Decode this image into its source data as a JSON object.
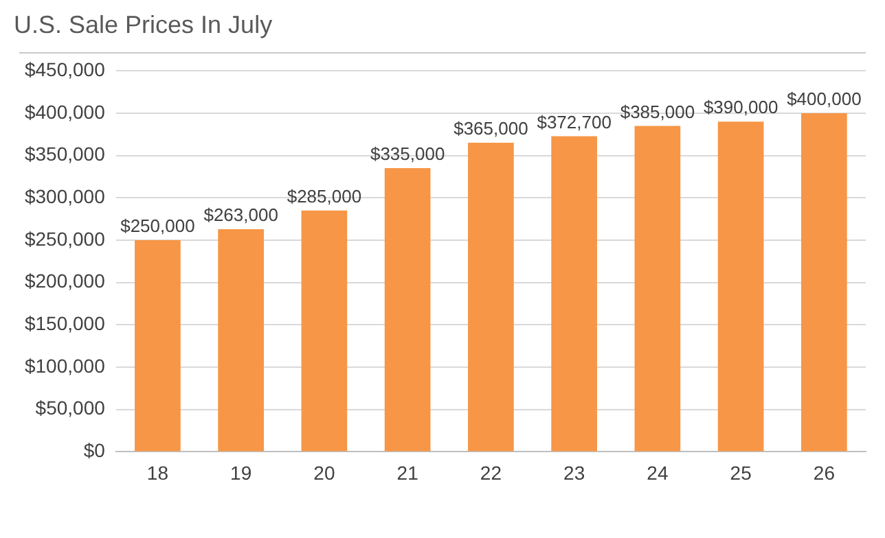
{
  "chart_data": {
    "type": "bar",
    "title": "U.S. Sale Prices In July",
    "categories": [
      "18",
      "19",
      "20",
      "21",
      "22",
      "23",
      "24",
      "25",
      "26"
    ],
    "values": [
      250000,
      263000,
      285000,
      335000,
      365000,
      372700,
      385000,
      390000,
      400000
    ],
    "value_labels": [
      "$250,000",
      "$263,000",
      "$285,000",
      "$335,000",
      "$365,000",
      "$372,700",
      "$385,000",
      "$390,000",
      "$400,000"
    ],
    "color": "#f79646",
    "ylim": [
      0,
      450000
    ],
    "yticks": [
      {
        "value": 0,
        "label": "$0"
      },
      {
        "value": 50000,
        "label": "$50,000"
      },
      {
        "value": 100000,
        "label": "$100,000"
      },
      {
        "value": 150000,
        "label": "$150,000"
      },
      {
        "value": 200000,
        "label": "$200,000"
      },
      {
        "value": 250000,
        "label": "$250,000"
      },
      {
        "value": 300000,
        "label": "$300,000"
      },
      {
        "value": 350000,
        "label": "$350,000"
      },
      {
        "value": 400000,
        "label": "$400,000"
      },
      {
        "value": 450000,
        "label": "$450,000"
      }
    ],
    "grid": "y",
    "legend": false
  }
}
